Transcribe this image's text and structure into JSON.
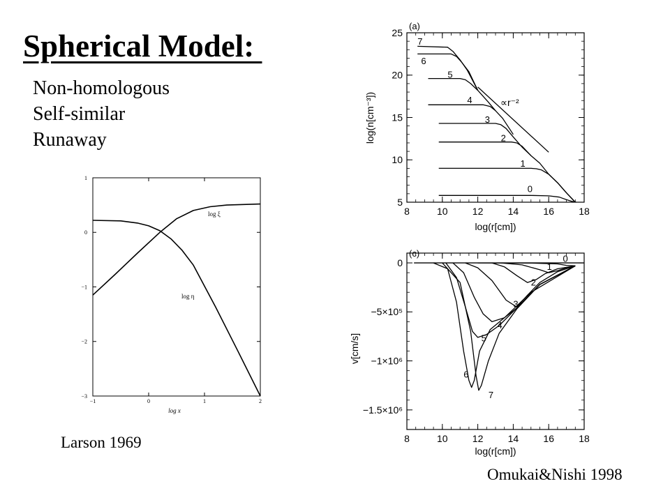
{
  "slide": {
    "title": "Spherical Model: ",
    "bullets": [
      "Non-homologous",
      "Self-similar",
      "Runaway"
    ],
    "captions": {
      "larson": "Larson 1969",
      "omukai": "Omukai&Nishi 1998"
    }
  },
  "chart_data": [
    {
      "type": "line",
      "source_label": "Larson 1969",
      "xlabel": "log x",
      "ylabel": "",
      "xlim": [
        -1,
        2
      ],
      "ylim": [
        -3,
        1
      ],
      "xticks": [
        -1,
        0,
        1,
        2
      ],
      "yticks": [
        1,
        0,
        -1,
        -2,
        -3
      ],
      "series": [
        {
          "name": "log ξ",
          "x": [
            -1,
            -0.6,
            -0.2,
            0.2,
            0.5,
            0.8,
            1.1,
            1.4,
            1.7,
            2
          ],
          "y": [
            -1.15,
            -0.77,
            -0.38,
            0.0,
            0.25,
            0.4,
            0.47,
            0.5,
            0.51,
            0.52
          ]
        },
        {
          "name": "log η",
          "x": [
            -1,
            -0.5,
            -0.2,
            0.0,
            0.2,
            0.4,
            0.6,
            0.8,
            1.2,
            1.6,
            2
          ],
          "y": [
            0.22,
            0.21,
            0.17,
            0.12,
            0.03,
            -0.12,
            -0.33,
            -0.6,
            -1.37,
            -2.18,
            -3.0
          ]
        }
      ]
    },
    {
      "type": "line",
      "panel": "(a)",
      "xlabel": "log(r[cm])",
      "ylabel": "log(n[cm⁻³])",
      "xlim": [
        8,
        18
      ],
      "ylim": [
        5,
        25
      ],
      "xticks": [
        8,
        10,
        12,
        14,
        16,
        18
      ],
      "yticks": [
        5,
        10,
        15,
        20,
        25
      ],
      "annotation": "∝r⁻²",
      "series": [
        {
          "name": "0",
          "x": [
            9.8,
            15.0,
            16.0,
            16.6,
            17.0,
            17.3,
            17.55
          ],
          "y": [
            5.8,
            5.8,
            5.75,
            5.6,
            5.3,
            5.1,
            5.0
          ]
        },
        {
          "name": "1",
          "x": [
            9.8,
            15.0,
            15.3,
            15.6,
            16.0,
            16.5,
            17.0,
            17.5
          ],
          "y": [
            9.0,
            9.0,
            8.95,
            8.8,
            8.3,
            7.3,
            6.1,
            5.0
          ]
        },
        {
          "name": "2",
          "x": [
            9.8,
            13.9,
            14.2,
            14.5,
            15.0,
            15.5,
            16.0,
            16.5,
            17.0,
            17.5
          ],
          "y": [
            12.1,
            12.1,
            12.0,
            11.6,
            10.5,
            9.6,
            8.3,
            7.3,
            6.1,
            5.0
          ]
        },
        {
          "name": "3",
          "x": [
            9.8,
            13.0,
            13.3,
            13.6,
            14.0,
            14.5,
            15.0
          ],
          "y": [
            14.3,
            14.3,
            14.15,
            13.7,
            12.7,
            11.5,
            10.5
          ]
        },
        {
          "name": "4",
          "x": [
            9.2,
            12.3,
            12.7,
            13.0,
            13.4,
            14.0
          ],
          "y": [
            16.5,
            16.5,
            16.3,
            15.8,
            14.9,
            13.0
          ]
        },
        {
          "name": "5",
          "x": [
            9.2,
            11.0,
            11.3,
            11.6,
            12.0,
            12.6,
            13.0
          ],
          "y": [
            19.6,
            19.6,
            19.45,
            19.0,
            18.2,
            16.8,
            15.8
          ]
        },
        {
          "name": "6",
          "x": [
            8.6,
            10.5,
            10.8,
            11.1,
            11.5,
            12.0
          ],
          "y": [
            22.5,
            22.5,
            22.2,
            21.5,
            20.4,
            18.2
          ]
        },
        {
          "name": "7",
          "x": [
            8.6,
            10.3,
            10.6,
            11.0,
            11.4,
            12.0
          ],
          "y": [
            23.4,
            23.3,
            22.8,
            21.8,
            20.6,
            18.2
          ]
        },
        {
          "name": "∝r⁻²",
          "x": [
            12.0,
            16.0
          ],
          "y": [
            18.6,
            10.9
          ]
        }
      ]
    },
    {
      "type": "line",
      "panel": "(c)",
      "xlabel": "log(r[cm])",
      "ylabel": "v[cm/s]",
      "xlim": [
        8,
        18
      ],
      "ylim": [
        -1700000,
        100000
      ],
      "xticks": [
        8,
        10,
        12,
        14,
        16,
        18
      ],
      "yticks": [
        0,
        -500000,
        -1000000,
        -1500000
      ],
      "ytick_labels": [
        "0",
        "−5×10⁵",
        "−1×10⁶",
        "−1.5×10⁶"
      ],
      "series": [
        {
          "name": "0",
          "x": [
            12.0,
            15.0,
            16.5,
            17.0,
            17.5
          ],
          "y": [
            0,
            -2000,
            -10000,
            -25000,
            -30000
          ]
        },
        {
          "name": "1",
          "x": [
            13.3,
            14.5,
            15.5,
            16.0,
            16.5,
            17.0,
            17.5
          ],
          "y": [
            0,
            -20000,
            -70000,
            -100000,
            -80000,
            -50000,
            -30000
          ]
        },
        {
          "name": "2",
          "x": [
            12.8,
            13.5,
            14.2,
            14.8,
            15.3,
            15.8,
            16.5,
            17.5
          ],
          "y": [
            0,
            -40000,
            -130000,
            -200000,
            -170000,
            -110000,
            -60000,
            -30000
          ]
        },
        {
          "name": "3",
          "x": [
            11.3,
            12.0,
            12.8,
            13.6,
            14.2,
            14.8,
            15.5,
            16.5,
            17.5
          ],
          "y": [
            0,
            -50000,
            -180000,
            -380000,
            -450000,
            -330000,
            -200000,
            -90000,
            -30000
          ]
        },
        {
          "name": "4",
          "x": [
            10.6,
            11.2,
            11.8,
            12.3,
            12.8,
            13.5,
            14.2,
            15.5,
            17.5
          ],
          "y": [
            0,
            -100000,
            -350000,
            -520000,
            -600000,
            -560000,
            -460000,
            -220000,
            -30000
          ]
        },
        {
          "name": "5",
          "x": [
            10.2,
            10.8,
            11.3,
            11.7,
            12.0,
            12.5,
            13.2,
            14.2,
            15.5,
            17.5
          ],
          "y": [
            0,
            -150000,
            -450000,
            -700000,
            -760000,
            -730000,
            -640000,
            -460000,
            -220000,
            -30000
          ]
        },
        {
          "name": "6",
          "x": [
            9.5,
            10.3,
            10.8,
            11.2,
            11.5,
            11.65,
            11.8,
            12.1,
            12.7,
            13.5,
            15.0,
            17.5
          ],
          "y": [
            0,
            -60000,
            -400000,
            -900000,
            -1200000,
            -1270000,
            -1200000,
            -900000,
            -680000,
            -560000,
            -300000,
            -30000
          ]
        },
        {
          "name": "7",
          "x": [
            10.0,
            11.0,
            11.6,
            11.9,
            12.05,
            12.2,
            12.6,
            13.2,
            14.2,
            15.5,
            17.5
          ],
          "y": [
            0,
            -200000,
            -700000,
            -1150000,
            -1300000,
            -1250000,
            -1000000,
            -720000,
            -470000,
            -220000,
            -30000
          ]
        }
      ]
    }
  ]
}
